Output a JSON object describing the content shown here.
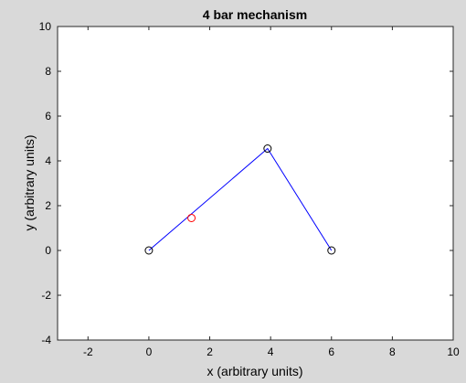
{
  "chart_data": {
    "type": "line",
    "title": "4 bar mechanism",
    "xlabel": "x (arbitrary units)",
    "ylabel": "y (arbitrary units)",
    "xlim": [
      -3,
      10
    ],
    "ylim": [
      -4,
      10
    ],
    "xticks": [
      -2,
      0,
      2,
      4,
      6,
      8,
      10
    ],
    "yticks": [
      -4,
      -2,
      0,
      2,
      4,
      6,
      8,
      10
    ],
    "grid": false,
    "legend": "none",
    "series": [
      {
        "type": "line",
        "color": "#0000ff",
        "points": [
          [
            0,
            0
          ],
          [
            3.9,
            4.55
          ],
          [
            6,
            0
          ]
        ]
      },
      {
        "type": "scatter",
        "marker": "circle",
        "color": "#000000",
        "points": [
          [
            0,
            0
          ],
          [
            3.9,
            4.55
          ],
          [
            6,
            0
          ]
        ]
      },
      {
        "type": "scatter",
        "marker": "circle",
        "color": "#ff0000",
        "points": [
          [
            1.4,
            1.45
          ]
        ]
      }
    ]
  }
}
